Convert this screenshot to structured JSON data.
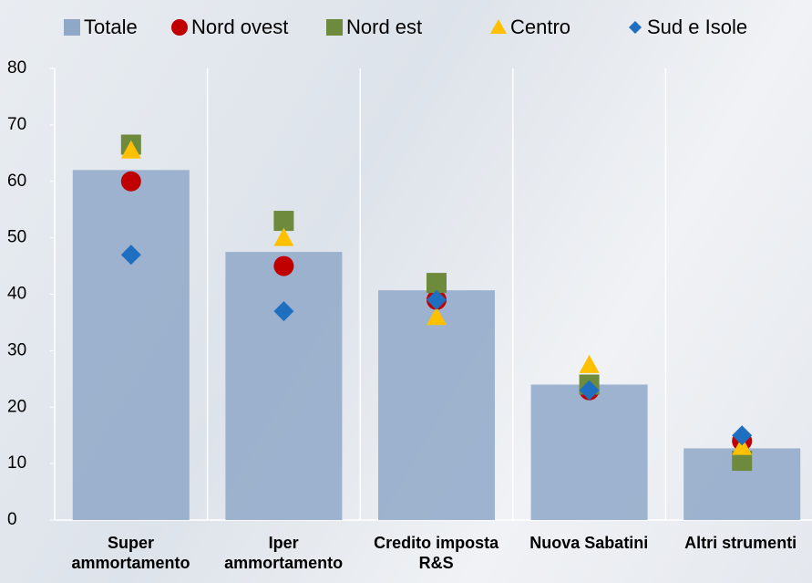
{
  "chart_data": {
    "type": "bar_with_markers",
    "categories": [
      "Super ammortamento",
      "Iper ammortamento",
      "Credito imposta R&S",
      "Nuova Sabatini",
      "Altri strumenti"
    ],
    "series": [
      {
        "name": "Totale",
        "color": "#8fa8c8",
        "marker": "bar",
        "values": [
          62,
          47.5,
          40.7,
          24,
          12.7
        ]
      },
      {
        "name": "Nord ovest",
        "color": "#c00000",
        "marker": "circle",
        "values": [
          60,
          45,
          39,
          23,
          14
        ]
      },
      {
        "name": "Nord est",
        "color": "#6e8b3d",
        "marker": "square",
        "values": [
          66.5,
          53,
          42,
          24,
          10.5
        ]
      },
      {
        "name": "Centro",
        "color": "#ffc000",
        "marker": "triangle",
        "values": [
          65.5,
          50,
          36,
          27.5,
          13
        ]
      },
      {
        "name": "Sud e Isole",
        "color": "#1f6fc0",
        "marker": "diamond",
        "values": [
          47,
          37,
          39,
          23,
          15
        ]
      }
    ],
    "ylim": [
      0,
      80
    ],
    "yticks": [
      0,
      10,
      20,
      30,
      40,
      50,
      60,
      70,
      80
    ]
  }
}
